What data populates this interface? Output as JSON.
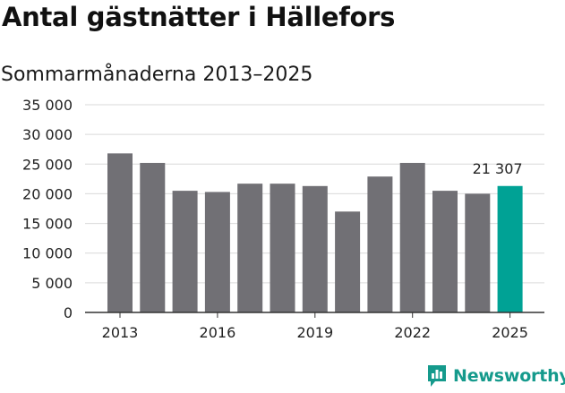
{
  "title": "Antal gästnätter i Hällefors",
  "subtitle": "Sommarmånaderna 2013–2025",
  "brand": {
    "name": "Newsworthy",
    "icon": "bar-chart-speech-icon",
    "color": "#159a8c"
  },
  "colors": {
    "bar": "#717075",
    "highlight": "#00a295",
    "grid": "#d9d9d9",
    "axis": "#333333"
  },
  "chart_data": {
    "type": "bar",
    "categories": [
      "2013",
      "2014",
      "2015",
      "2016",
      "2017",
      "2018",
      "2019",
      "2020",
      "2021",
      "2022",
      "2023",
      "2024",
      "2025"
    ],
    "values": [
      26800,
      25200,
      20500,
      20300,
      21700,
      21700,
      21300,
      17000,
      22900,
      25200,
      20500,
      20000,
      21307
    ],
    "xticks": [
      "2013",
      "2016",
      "2019",
      "2022",
      "2025"
    ],
    "yticks": [
      "0",
      "5 000",
      "10 000",
      "15 000",
      "20 000",
      "25 000",
      "30 000",
      "35 000"
    ],
    "ylim": [
      0,
      35000
    ],
    "grid": true,
    "highlight_index": 12,
    "annotation": "21 307"
  }
}
